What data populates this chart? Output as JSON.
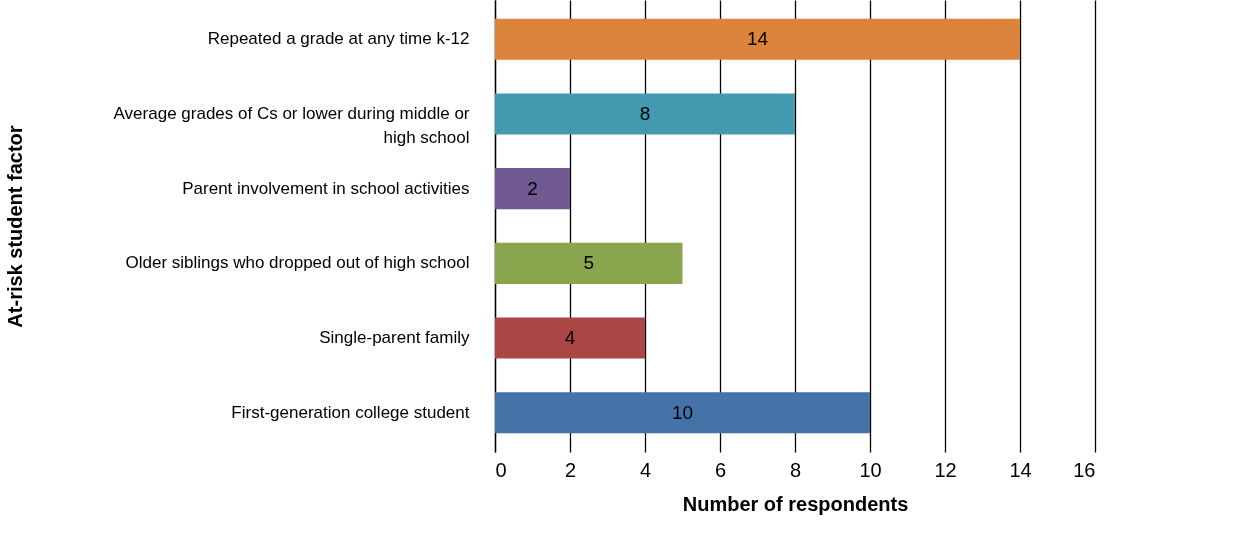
{
  "chart_data": {
    "type": "bar",
    "orientation": "horizontal",
    "xlabel": "Number of respondents",
    "ylabel": "At-risk student factor",
    "categories": [
      "Repeated a grade at any time k-12",
      "Average grades of Cs or lower during middle or high school",
      "Parent involvement in school activities",
      "Older siblings who dropped out of high school",
      "Single-parent family",
      "First-generation college student"
    ],
    "values": [
      14,
      8,
      2,
      5,
      4,
      10
    ],
    "colors": [
      "#dd843c",
      "#4299b0",
      "#715992",
      "#89a54e",
      "#aa4643",
      "#4572a7"
    ],
    "xlim": [
      0,
      16
    ],
    "xticks": [
      0,
      2,
      4,
      6,
      8,
      10,
      12,
      14,
      16
    ],
    "grid": "x",
    "data_labels": true
  }
}
